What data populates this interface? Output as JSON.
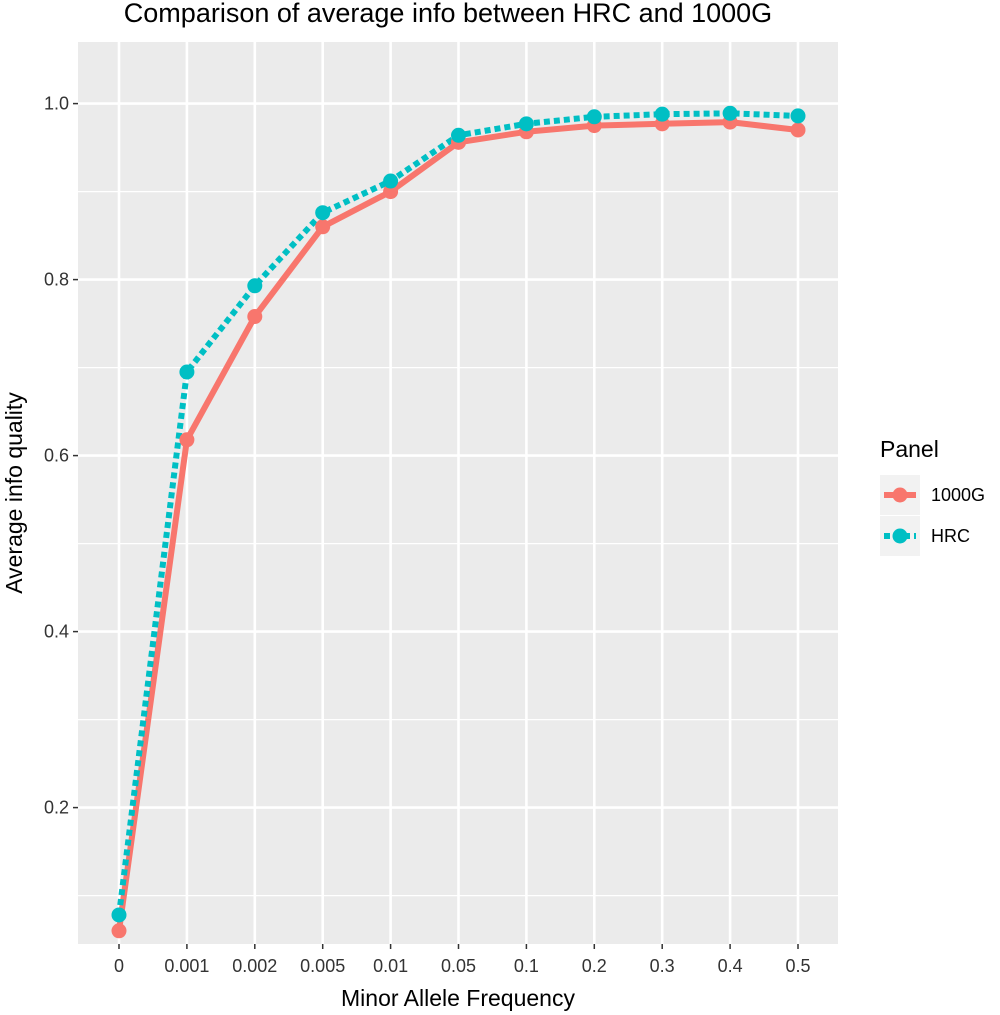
{
  "chart_data": {
    "type": "line",
    "title": "Comparison of average info between HRC and 1000G",
    "xlabel": "Minor Allele Frequency",
    "ylabel": "Average info quality",
    "categories": [
      "0",
      "0.001",
      "0.002",
      "0.005",
      "0.01",
      "0.05",
      "0.1",
      "0.2",
      "0.3",
      "0.4",
      "0.5"
    ],
    "y_ticks": [
      0.2,
      0.4,
      0.6,
      0.8,
      1.0
    ],
    "y_tick_labels": [
      "0.2",
      "0.4",
      "0.6",
      "0.8",
      "1.0"
    ],
    "ylim": [
      0.045,
      1.07
    ],
    "grid": true,
    "legend": {
      "title": "Panel",
      "position": "right"
    },
    "series": [
      {
        "name": "1000G",
        "color": "#F8766D",
        "line_style": "solid",
        "values": [
          0.06,
          0.618,
          0.758,
          0.86,
          0.9,
          0.956,
          0.968,
          0.975,
          0.977,
          0.979,
          0.97
        ]
      },
      {
        "name": "HRC",
        "color": "#00BFC4",
        "line_style": "dotted",
        "values": [
          0.078,
          0.695,
          0.793,
          0.876,
          0.912,
          0.964,
          0.977,
          0.985,
          0.988,
          0.989,
          0.986
        ]
      }
    ]
  }
}
